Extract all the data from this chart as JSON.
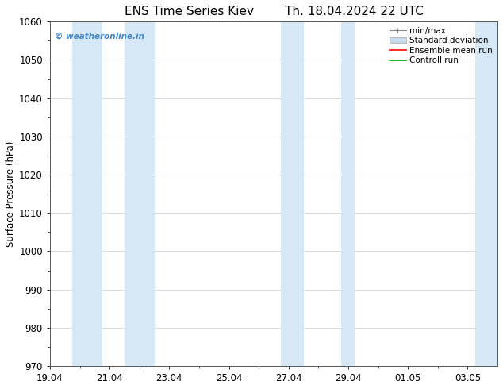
{
  "title_left": "ENS Time Series Kiev",
  "title_right": "Th. 18.04.2024 22 UTC",
  "ylabel": "Surface Pressure (hPa)",
  "ylim": [
    970,
    1060
  ],
  "yticks": [
    970,
    980,
    990,
    1000,
    1010,
    1020,
    1030,
    1040,
    1050,
    1060
  ],
  "xtick_labels": [
    "19.04",
    "21.04",
    "23.04",
    "25.04",
    "27.04",
    "29.04",
    "01.05",
    "03.05"
  ],
  "xtick_positions": [
    0,
    2,
    4,
    6,
    8,
    10,
    12,
    14
  ],
  "xlim": [
    0,
    15
  ],
  "shaded_bands": [
    {
      "x_start": 1.0,
      "x_end": 2.5
    },
    {
      "x_start": 2.5,
      "x_end": 3.5
    },
    {
      "x_start": 7.5,
      "x_end": 8.5
    },
    {
      "x_start": 9.5,
      "x_end": 10.5
    },
    {
      "x_start": 14.0,
      "x_end": 15.0
    }
  ],
  "shade_color": "#d6e8f5",
  "watermark_text": "© weatheronline.in",
  "watermark_color": "#4488cc",
  "legend_entries": [
    {
      "label": "min/max"
    },
    {
      "label": "Standard deviation"
    },
    {
      "label": "Ensemble mean run"
    },
    {
      "label": "Controll run"
    }
  ],
  "legend_colors": [
    "#aaaaaa",
    "#c5d9ea",
    "#ff0000",
    "#00aa00"
  ],
  "bg_color": "#ffffff",
  "title_fontsize": 11,
  "tick_fontsize": 8.5,
  "legend_fontsize": 7.5
}
